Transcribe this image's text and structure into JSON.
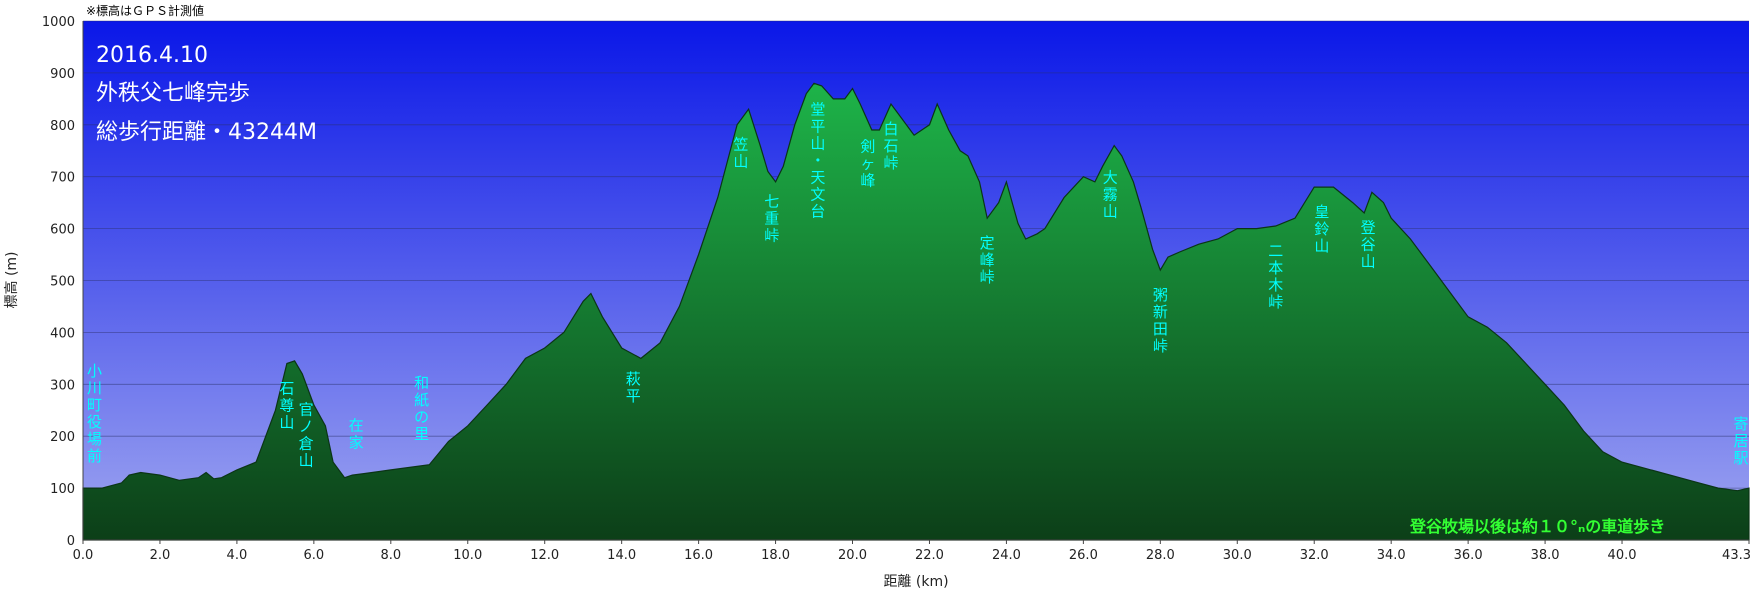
{
  "note": "※標高はＧＰＳ計測値",
  "chart_data": {
    "type": "area",
    "xlabel": "距離 (km)",
    "ylabel": "標高 (m)",
    "xlim": [
      0,
      43.3
    ],
    "ylim": [
      0,
      1000
    ],
    "xticks": [
      "0.0",
      "2.0",
      "4.0",
      "6.0",
      "8.0",
      "10.0",
      "12.0",
      "14.0",
      "16.0",
      "18.0",
      "20.0",
      "22.0",
      "24.0",
      "26.0",
      "28.0",
      "30.0",
      "32.0",
      "34.0",
      "36.0",
      "38.0",
      "40.0",
      "43.3"
    ],
    "yticks": [
      "0",
      "100",
      "200",
      "300",
      "400",
      "500",
      "600",
      "700",
      "800",
      "900",
      "1000"
    ],
    "grid": true,
    "overlay_text": [
      "2016.4.10",
      "外秩父七峰完歩",
      "総歩行距離・43244M"
    ],
    "footer_note": "登谷牧場以後は約１０°ₙの車道歩き",
    "profile": {
      "x": [
        0,
        0.5,
        1.0,
        1.2,
        1.5,
        2.0,
        2.5,
        3.0,
        3.2,
        3.4,
        3.6,
        4.0,
        4.5,
        5.0,
        5.3,
        5.5,
        5.7,
        6.0,
        6.3,
        6.5,
        6.8,
        7.0,
        7.3,
        8.0,
        9.0,
        9.5,
        10.0,
        10.5,
        11.0,
        11.5,
        12.0,
        12.5,
        13.0,
        13.2,
        13.5,
        14.0,
        14.5,
        15.0,
        15.5,
        16.0,
        16.5,
        17.0,
        17.3,
        17.6,
        17.8,
        18.0,
        18.2,
        18.5,
        18.8,
        19.0,
        19.2,
        19.5,
        19.8,
        20.0,
        20.2,
        20.5,
        20.7,
        21.0,
        21.2,
        21.4,
        21.6,
        21.8,
        22.0,
        22.2,
        22.5,
        22.8,
        23.0,
        23.3,
        23.5,
        23.8,
        24.0,
        24.3,
        24.5,
        24.8,
        25.0,
        25.5,
        26.0,
        26.3,
        26.5,
        26.8,
        27.0,
        27.3,
        27.5,
        27.8,
        28.0,
        28.2,
        28.5,
        29.0,
        29.5,
        30.0,
        30.5,
        31.0,
        31.5,
        32.0,
        32.5,
        33.0,
        33.3,
        33.5,
        33.8,
        34.0,
        34.5,
        35.0,
        35.5,
        36.0,
        36.5,
        37.0,
        37.5,
        38.0,
        38.5,
        39.0,
        39.5,
        40.0,
        40.5,
        41.0,
        41.5,
        42.0,
        42.5,
        43.0,
        43.3
      ],
      "y": [
        100,
        100,
        110,
        125,
        130,
        125,
        115,
        120,
        130,
        118,
        120,
        135,
        150,
        250,
        340,
        345,
        320,
        260,
        220,
        150,
        120,
        125,
        128,
        135,
        145,
        190,
        220,
        260,
        300,
        350,
        370,
        400,
        460,
        475,
        430,
        370,
        350,
        380,
        450,
        550,
        660,
        800,
        830,
        760,
        710,
        690,
        720,
        800,
        860,
        880,
        875,
        850,
        850,
        870,
        840,
        790,
        790,
        840,
        820,
        800,
        780,
        790,
        800,
        840,
        790,
        750,
        740,
        690,
        620,
        650,
        690,
        610,
        580,
        590,
        600,
        660,
        700,
        690,
        720,
        760,
        740,
        690,
        640,
        560,
        520,
        545,
        555,
        570,
        580,
        600,
        600,
        605,
        620,
        680,
        680,
        650,
        630,
        670,
        650,
        620,
        580,
        530,
        480,
        430,
        410,
        380,
        340,
        300,
        260,
        210,
        170,
        150,
        140,
        130,
        120,
        110,
        100,
        95,
        100
      ]
    },
    "annotations": [
      {
        "label": "小川町役場前",
        "x": 0.3
      },
      {
        "label": "石尊山",
        "x": 5.3
      },
      {
        "label": "官ノ倉山",
        "x": 5.8
      },
      {
        "label": "在家",
        "x": 7.1
      },
      {
        "label": "和紙の里",
        "x": 8.8
      },
      {
        "label": "萩平",
        "x": 14.3
      },
      {
        "label": "笠山",
        "x": 17.1
      },
      {
        "label": "七重峠",
        "x": 17.9
      },
      {
        "label": "堂平山・天文台",
        "x": 19.1
      },
      {
        "label": "剣ヶ峰",
        "x": 20.4
      },
      {
        "label": "白石峠",
        "x": 21.0
      },
      {
        "label": "定峰峠",
        "x": 23.5
      },
      {
        "label": "大霧山",
        "x": 26.7
      },
      {
        "label": "粥新田峠",
        "x": 28.0
      },
      {
        "label": "二本木峠",
        "x": 31.0
      },
      {
        "label": "皇鈴山",
        "x": 32.2
      },
      {
        "label": "登谷山",
        "x": 33.4
      },
      {
        "label": "寄居駅",
        "x": 43.1
      }
    ],
    "colors": {
      "sky_top": "#0a17e8",
      "sky_bottom": "#9fa6f0",
      "fill_top": "#1eb74a",
      "fill_bottom": "#0c3f18",
      "outline": "#0b3516",
      "label": "#00ffff",
      "footer": "#33ff33"
    }
  }
}
